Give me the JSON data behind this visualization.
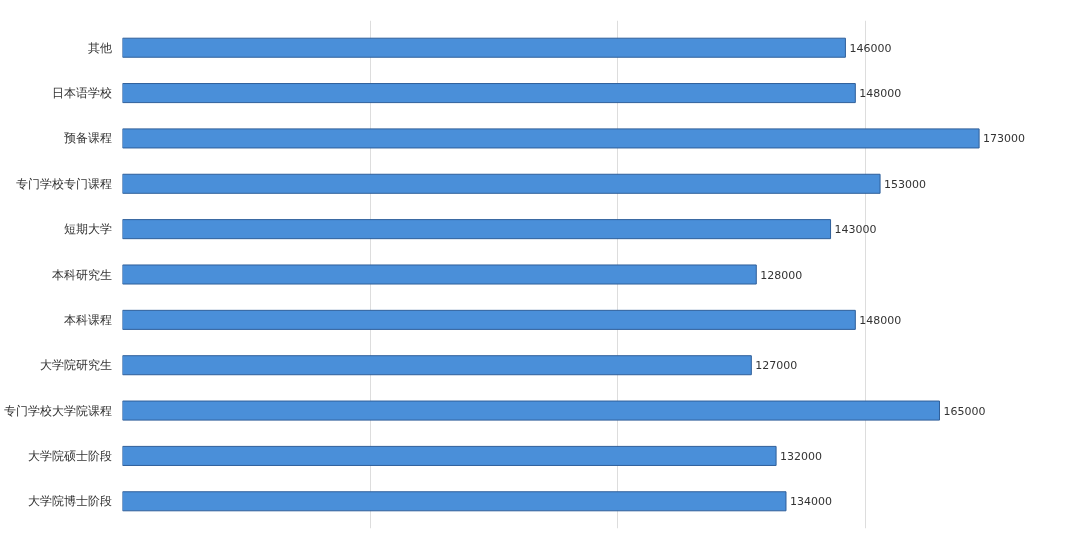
{
  "chart_data": {
    "type": "bar",
    "orientation": "horizontal",
    "categories": [
      "其他",
      "日本语学校",
      "预备课程",
      "专门学校专门课程",
      "短期大学",
      "本科研究生",
      "本科课程",
      "大学院研究生",
      "专门学校大学院课程",
      "大学院硕士阶段",
      "大学院博士阶段"
    ],
    "values": [
      146000,
      148000,
      173000,
      153000,
      143000,
      128000,
      148000,
      127000,
      165000,
      132000,
      134000
    ],
    "color": "#4a8fd9",
    "data_labels": true,
    "grid": "x",
    "tick_labels": "y"
  }
}
